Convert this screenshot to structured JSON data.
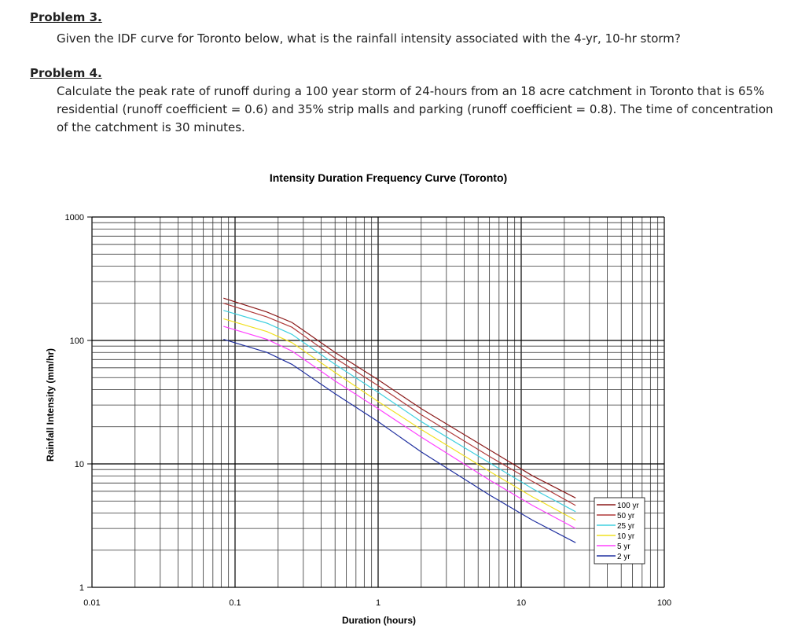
{
  "problem3": {
    "title": "Problem 3.",
    "text": "Given the IDF curve for Toronto below, what is the rainfall intensity associated with the 4-yr, 10-hr storm?"
  },
  "problem4": {
    "title": "Problem 4.",
    "text": "Calculate the peak rate of runoff during a 100 year storm of 24-hours from an 18 acre catchment in Toronto that is 65% residential (runoff coefficient = 0.6) and 35% strip malls and parking (runoff coefficient = 0.8).  The time of concentration of the catchment is 30 minutes."
  },
  "chart_data": {
    "type": "line",
    "title": "Intensity Duration Frequency Curve (Toronto)",
    "xlabel": "Duration (hours)",
    "ylabel": "Rainfall Intensity (mm/hr)",
    "xscale": "log",
    "yscale": "log",
    "xlim": [
      0.01,
      100
    ],
    "ylim": [
      1,
      1000
    ],
    "xticks": [
      "0.01",
      "0.1",
      "1",
      "10",
      "100"
    ],
    "yticks": [
      "1",
      "10",
      "100",
      "1000"
    ],
    "grid": true,
    "legend_position": "bottom-right inside",
    "x": [
      0.083,
      0.167,
      0.25,
      0.5,
      1,
      2,
      6,
      12,
      24
    ],
    "series": [
      {
        "name": "100 yr",
        "color": "#8b1a1a",
        "values": [
          220,
          170,
          140,
          80,
          48,
          28,
          13,
          8,
          5.3
        ]
      },
      {
        "name": "50 yr",
        "color": "#b03a3a",
        "values": [
          200,
          155,
          128,
          72,
          43,
          25,
          11.5,
          7.2,
          4.6
        ]
      },
      {
        "name": "25 yr",
        "color": "#40d0e0",
        "values": [
          175,
          138,
          112,
          64,
          38,
          22,
          10.2,
          6.3,
          4.1
        ]
      },
      {
        "name": "10 yr",
        "color": "#f0e020",
        "values": [
          150,
          118,
          96,
          55,
          32,
          19,
          8.7,
          5.4,
          3.5
        ]
      },
      {
        "name": "5 yr",
        "color": "#ff40ff",
        "values": [
          130,
          102,
          82,
          47,
          28,
          16.5,
          7.4,
          4.6,
          3.0
        ]
      },
      {
        "name": "2 yr",
        "color": "#2030a0",
        "values": [
          102,
          80,
          64,
          37,
          22,
          12.5,
          5.6,
          3.5,
          2.3
        ]
      }
    ]
  }
}
